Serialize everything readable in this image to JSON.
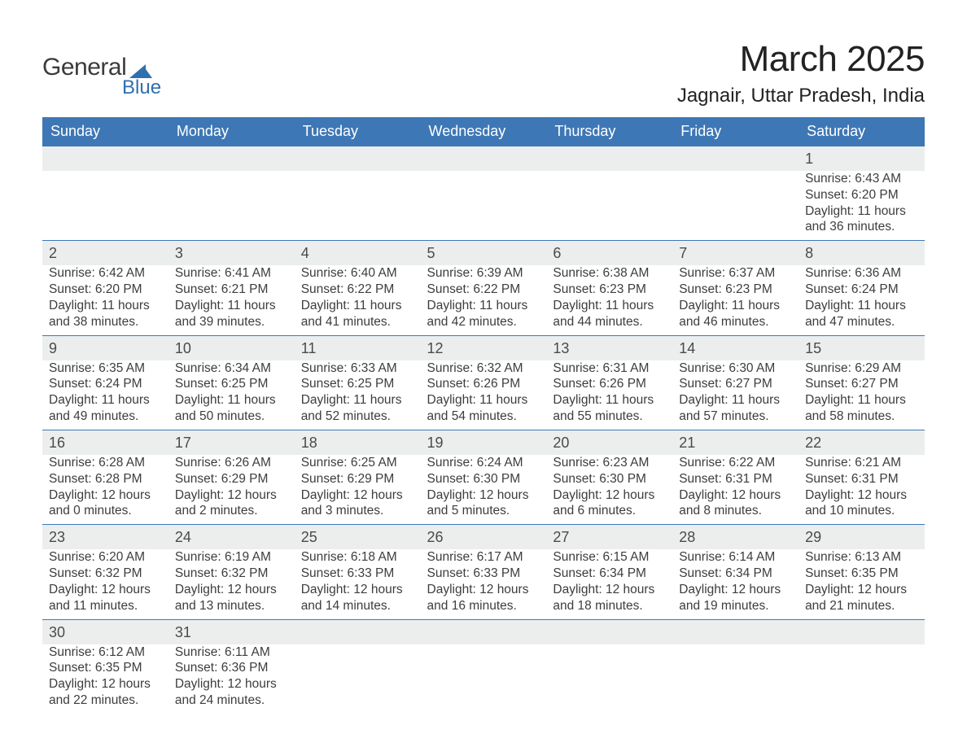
{
  "logo": {
    "text_main": "General",
    "text_sub": "Blue",
    "shape_color": "#2f6fb0"
  },
  "title": "March 2025",
  "subtitle": "Jagnair, Uttar Pradesh, India",
  "colors": {
    "header_bg": "#3e77b5",
    "header_fg": "#ffffff",
    "daynum_bg": "#eceeee",
    "row_border": "#3e77b5",
    "text": "#3a3a3a"
  },
  "day_headers": [
    "Sunday",
    "Monday",
    "Tuesday",
    "Wednesday",
    "Thursday",
    "Friday",
    "Saturday"
  ],
  "weeks": [
    [
      null,
      null,
      null,
      null,
      null,
      null,
      {
        "n": "1",
        "sr": "Sunrise: 6:43 AM",
        "ss": "Sunset: 6:20 PM",
        "dl": "Daylight: 11 hours and 36 minutes."
      }
    ],
    [
      {
        "n": "2",
        "sr": "Sunrise: 6:42 AM",
        "ss": "Sunset: 6:20 PM",
        "dl": "Daylight: 11 hours and 38 minutes."
      },
      {
        "n": "3",
        "sr": "Sunrise: 6:41 AM",
        "ss": "Sunset: 6:21 PM",
        "dl": "Daylight: 11 hours and 39 minutes."
      },
      {
        "n": "4",
        "sr": "Sunrise: 6:40 AM",
        "ss": "Sunset: 6:22 PM",
        "dl": "Daylight: 11 hours and 41 minutes."
      },
      {
        "n": "5",
        "sr": "Sunrise: 6:39 AM",
        "ss": "Sunset: 6:22 PM",
        "dl": "Daylight: 11 hours and 42 minutes."
      },
      {
        "n": "6",
        "sr": "Sunrise: 6:38 AM",
        "ss": "Sunset: 6:23 PM",
        "dl": "Daylight: 11 hours and 44 minutes."
      },
      {
        "n": "7",
        "sr": "Sunrise: 6:37 AM",
        "ss": "Sunset: 6:23 PM",
        "dl": "Daylight: 11 hours and 46 minutes."
      },
      {
        "n": "8",
        "sr": "Sunrise: 6:36 AM",
        "ss": "Sunset: 6:24 PM",
        "dl": "Daylight: 11 hours and 47 minutes."
      }
    ],
    [
      {
        "n": "9",
        "sr": "Sunrise: 6:35 AM",
        "ss": "Sunset: 6:24 PM",
        "dl": "Daylight: 11 hours and 49 minutes."
      },
      {
        "n": "10",
        "sr": "Sunrise: 6:34 AM",
        "ss": "Sunset: 6:25 PM",
        "dl": "Daylight: 11 hours and 50 minutes."
      },
      {
        "n": "11",
        "sr": "Sunrise: 6:33 AM",
        "ss": "Sunset: 6:25 PM",
        "dl": "Daylight: 11 hours and 52 minutes."
      },
      {
        "n": "12",
        "sr": "Sunrise: 6:32 AM",
        "ss": "Sunset: 6:26 PM",
        "dl": "Daylight: 11 hours and 54 minutes."
      },
      {
        "n": "13",
        "sr": "Sunrise: 6:31 AM",
        "ss": "Sunset: 6:26 PM",
        "dl": "Daylight: 11 hours and 55 minutes."
      },
      {
        "n": "14",
        "sr": "Sunrise: 6:30 AM",
        "ss": "Sunset: 6:27 PM",
        "dl": "Daylight: 11 hours and 57 minutes."
      },
      {
        "n": "15",
        "sr": "Sunrise: 6:29 AM",
        "ss": "Sunset: 6:27 PM",
        "dl": "Daylight: 11 hours and 58 minutes."
      }
    ],
    [
      {
        "n": "16",
        "sr": "Sunrise: 6:28 AM",
        "ss": "Sunset: 6:28 PM",
        "dl": "Daylight: 12 hours and 0 minutes."
      },
      {
        "n": "17",
        "sr": "Sunrise: 6:26 AM",
        "ss": "Sunset: 6:29 PM",
        "dl": "Daylight: 12 hours and 2 minutes."
      },
      {
        "n": "18",
        "sr": "Sunrise: 6:25 AM",
        "ss": "Sunset: 6:29 PM",
        "dl": "Daylight: 12 hours and 3 minutes."
      },
      {
        "n": "19",
        "sr": "Sunrise: 6:24 AM",
        "ss": "Sunset: 6:30 PM",
        "dl": "Daylight: 12 hours and 5 minutes."
      },
      {
        "n": "20",
        "sr": "Sunrise: 6:23 AM",
        "ss": "Sunset: 6:30 PM",
        "dl": "Daylight: 12 hours and 6 minutes."
      },
      {
        "n": "21",
        "sr": "Sunrise: 6:22 AM",
        "ss": "Sunset: 6:31 PM",
        "dl": "Daylight: 12 hours and 8 minutes."
      },
      {
        "n": "22",
        "sr": "Sunrise: 6:21 AM",
        "ss": "Sunset: 6:31 PM",
        "dl": "Daylight: 12 hours and 10 minutes."
      }
    ],
    [
      {
        "n": "23",
        "sr": "Sunrise: 6:20 AM",
        "ss": "Sunset: 6:32 PM",
        "dl": "Daylight: 12 hours and 11 minutes."
      },
      {
        "n": "24",
        "sr": "Sunrise: 6:19 AM",
        "ss": "Sunset: 6:32 PM",
        "dl": "Daylight: 12 hours and 13 minutes."
      },
      {
        "n": "25",
        "sr": "Sunrise: 6:18 AM",
        "ss": "Sunset: 6:33 PM",
        "dl": "Daylight: 12 hours and 14 minutes."
      },
      {
        "n": "26",
        "sr": "Sunrise: 6:17 AM",
        "ss": "Sunset: 6:33 PM",
        "dl": "Daylight: 12 hours and 16 minutes."
      },
      {
        "n": "27",
        "sr": "Sunrise: 6:15 AM",
        "ss": "Sunset: 6:34 PM",
        "dl": "Daylight: 12 hours and 18 minutes."
      },
      {
        "n": "28",
        "sr": "Sunrise: 6:14 AM",
        "ss": "Sunset: 6:34 PM",
        "dl": "Daylight: 12 hours and 19 minutes."
      },
      {
        "n": "29",
        "sr": "Sunrise: 6:13 AM",
        "ss": "Sunset: 6:35 PM",
        "dl": "Daylight: 12 hours and 21 minutes."
      }
    ],
    [
      {
        "n": "30",
        "sr": "Sunrise: 6:12 AM",
        "ss": "Sunset: 6:35 PM",
        "dl": "Daylight: 12 hours and 22 minutes."
      },
      {
        "n": "31",
        "sr": "Sunrise: 6:11 AM",
        "ss": "Sunset: 6:36 PM",
        "dl": "Daylight: 12 hours and 24 minutes."
      },
      null,
      null,
      null,
      null,
      null
    ]
  ]
}
